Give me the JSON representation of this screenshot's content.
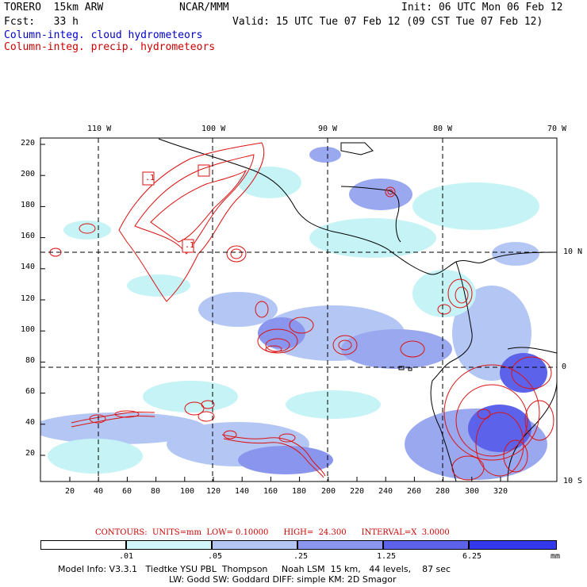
{
  "header": {
    "line1_left": "TORERO  15km ARW",
    "line1_center": "NCAR/MMM",
    "line1_right": "Init: 06 UTC Mon 06 Feb 12",
    "line2_left": "Fcst:   33 h",
    "line2_right": "Valid: 15 UTC Tue 07 Feb 12 (09 CST Tue 07 Feb 12)",
    "field1": "Column-integ. cloud hydrometeors",
    "field2": "Column-integ. precip. hydrometeors"
  },
  "map": {
    "top_lon_labels": [
      "110 W",
      "100 W",
      "90 W",
      "80 W",
      "70 W"
    ],
    "right_lat_labels": [
      "10 N",
      "0",
      "10 S"
    ],
    "y_ticks": [
      "220",
      "200",
      "180",
      "160",
      "140",
      "120",
      "100",
      "80",
      "60",
      "40",
      "20"
    ],
    "x_ticks": [
      "20",
      "40",
      "60",
      "80",
      "100",
      "120",
      "140",
      "160",
      "180",
      "200",
      "220",
      "240",
      "260",
      "280",
      "300",
      "320"
    ],
    "contour_box_labels": [
      ".1",
      ".1"
    ],
    "colors": {
      "cloud_light": "#c6f3f6",
      "cloud_mid": "#9aa8f0",
      "cloud_dark": "#5a5ff0",
      "cloud_darkest": "#2222e8",
      "contour": "#dd1111",
      "coast": "#000000"
    }
  },
  "contours_line": "CONTOURS:  UNITS=mm  LOW= 0.10000      HIGH=  24.300      INTERVAL=X  3.0000",
  "legend": {
    "labels": [
      ".01",
      ".05",
      ".25",
      "1.25",
      "6.25",
      "mm"
    ],
    "colors": [
      "#ffffff",
      "#d0f6f9",
      "#b3c6f4",
      "#8a96ee",
      "#5c63ea",
      "#3438ec",
      "#1010f0"
    ]
  },
  "footer": {
    "line1": "Model Info: V3.3.1   Tiedtke YSU PBL  Thompson     Noah LSM  15 km,   44 levels,    87 sec",
    "line2": "LW: Godd SW: Goddard DIFF: simple KM: 2D Smagor"
  }
}
